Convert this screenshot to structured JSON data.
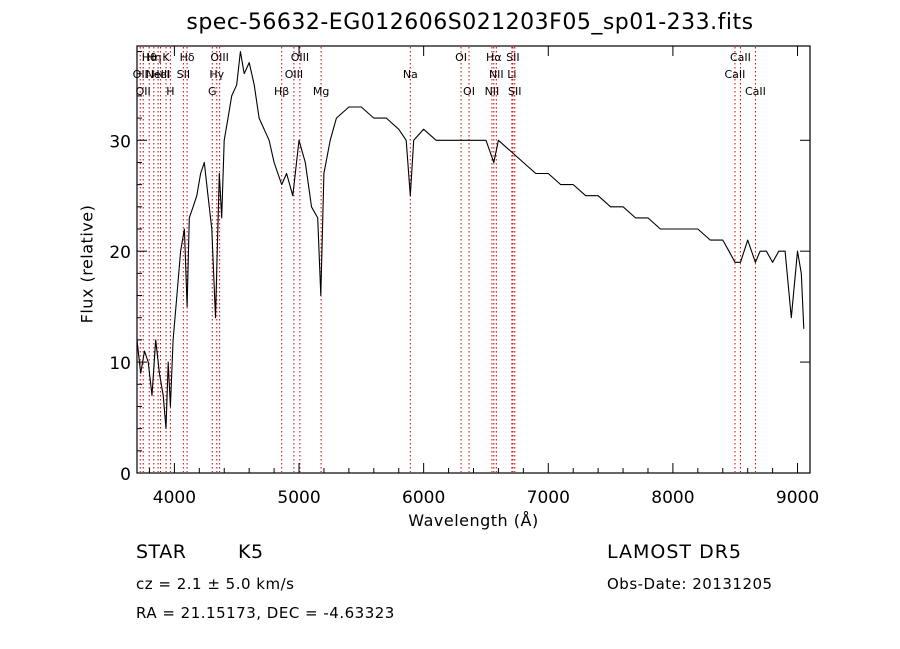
{
  "chart_data": {
    "type": "line",
    "title": "spec-56632-EG012606S021203F05_sp01-233.fits",
    "xlabel": "Wavelength (Å)",
    "ylabel": "Flux (relative)",
    "xlim": [
      3700,
      9100
    ],
    "ylim": [
      0,
      38.5
    ],
    "x_ticks": [
      4000,
      5000,
      6000,
      7000,
      8000,
      9000
    ],
    "y_ticks": [
      0,
      10,
      20,
      30
    ],
    "grid": false,
    "legend": "none",
    "line_color": "#000000",
    "marker_color": "#cc0000",
    "series": [
      {
        "x": [
          3700,
          3730,
          3760,
          3790,
          3820,
          3850,
          3880,
          3910,
          3933,
          3950,
          3968,
          3990,
          4020,
          4050,
          4080,
          4102,
          4120,
          4150,
          4180,
          4210,
          4240,
          4270,
          4300,
          4330,
          4360,
          4380,
          4400,
          4430,
          4460,
          4500,
          4530,
          4560,
          4600,
          4640,
          4680,
          4720,
          4760,
          4800,
          4861,
          4900,
          4950,
          5000,
          5050,
          5100,
          5150,
          5175,
          5200,
          5250,
          5300,
          5400,
          5500,
          5600,
          5700,
          5800,
          5860,
          5893,
          5920,
          6000,
          6100,
          6200,
          6300,
          6400,
          6500,
          6563,
          6600,
          6700,
          6800,
          6900,
          7000,
          7100,
          7200,
          7300,
          7400,
          7500,
          7600,
          7700,
          7800,
          7900,
          8000,
          8100,
          8200,
          8300,
          8400,
          8450,
          8498,
          8542,
          8600,
          8662,
          8700,
          8750,
          8800,
          8850,
          8900,
          8950,
          9000,
          9030,
          9050
        ],
        "y": [
          12,
          9,
          11,
          10,
          7,
          12,
          9,
          7,
          4,
          10,
          6,
          12,
          16,
          20,
          22,
          15,
          23,
          24,
          25,
          27,
          28,
          25,
          22,
          14,
          27,
          23,
          30,
          32,
          34,
          35,
          38,
          36,
          37,
          35,
          32,
          31,
          30,
          28,
          26,
          27,
          25,
          30,
          28,
          24,
          23,
          16,
          27,
          30,
          32,
          33,
          33,
          32,
          32,
          31,
          30,
          25,
          30,
          31,
          30,
          30,
          30,
          30,
          30,
          28,
          30,
          29,
          28,
          27,
          27,
          26,
          26,
          25,
          25,
          24,
          24,
          23,
          23,
          22,
          22,
          22,
          22,
          21,
          21,
          20,
          19,
          19,
          21,
          19,
          20,
          20,
          19,
          20,
          20,
          14,
          20,
          18,
          13
        ]
      }
    ],
    "line_markers": [
      {
        "wave": 3726,
        "tier": 1,
        "label": "OII"
      },
      {
        "wave": 3750,
        "tier": 2,
        "label": "OII"
      },
      {
        "wave": 3798,
        "tier": 0,
        "label": "Hθ"
      },
      {
        "wave": 3835,
        "tier": 0,
        "label": "Hη"
      },
      {
        "wave": 3869,
        "tier": 1,
        "label": "NeIII"
      },
      {
        "wave": 3889,
        "tier": 1,
        "label": "HeI"
      },
      {
        "wave": 3933,
        "tier": 0,
        "label": "K"
      },
      {
        "wave": 3968,
        "tier": 2,
        "label": "H"
      },
      {
        "wave": 4072,
        "tier": 1,
        "label": "SII"
      },
      {
        "wave": 4102,
        "tier": 0,
        "label": "Hδ"
      },
      {
        "wave": 4304,
        "tier": 2,
        "label": "G"
      },
      {
        "wave": 4340,
        "tier": 1,
        "label": "Hγ"
      },
      {
        "wave": 4363,
        "tier": 0,
        "label": "OIII"
      },
      {
        "wave": 4861,
        "tier": 2,
        "label": "Hβ"
      },
      {
        "wave": 4959,
        "tier": 1,
        "label": "OIII"
      },
      {
        "wave": 5007,
        "tier": 0,
        "label": "OIII"
      },
      {
        "wave": 5177,
        "tier": 2,
        "label": "Mg"
      },
      {
        "wave": 5893,
        "tier": 1,
        "label": "Na"
      },
      {
        "wave": 6300,
        "tier": 0,
        "label": "OI"
      },
      {
        "wave": 6364,
        "tier": 2,
        "label": "OI"
      },
      {
        "wave": 6548,
        "tier": 2,
        "label": "NII"
      },
      {
        "wave": 6563,
        "tier": 0,
        "label": "Hα"
      },
      {
        "wave": 6583,
        "tier": 1,
        "label": "NII"
      },
      {
        "wave": 6708,
        "tier": 1,
        "label": "Li"
      },
      {
        "wave": 6716,
        "tier": 0,
        "label": "SII"
      },
      {
        "wave": 6731,
        "tier": 2,
        "label": "SII"
      },
      {
        "wave": 8498,
        "tier": 1,
        "label": "CaII"
      },
      {
        "wave": 8542,
        "tier": 0,
        "label": "CaII"
      },
      {
        "wave": 8662,
        "tier": 2,
        "label": "CaII"
      }
    ]
  },
  "info": {
    "object_class": "STAR",
    "subclass": "K5",
    "survey": "LAMOST DR5",
    "redshift_line": "cz = 2.1 ± 5.0 km/s",
    "obs_date": "Obs-Date: 20131205",
    "coords": "RA =  21.15173, DEC =  -4.63323"
  }
}
